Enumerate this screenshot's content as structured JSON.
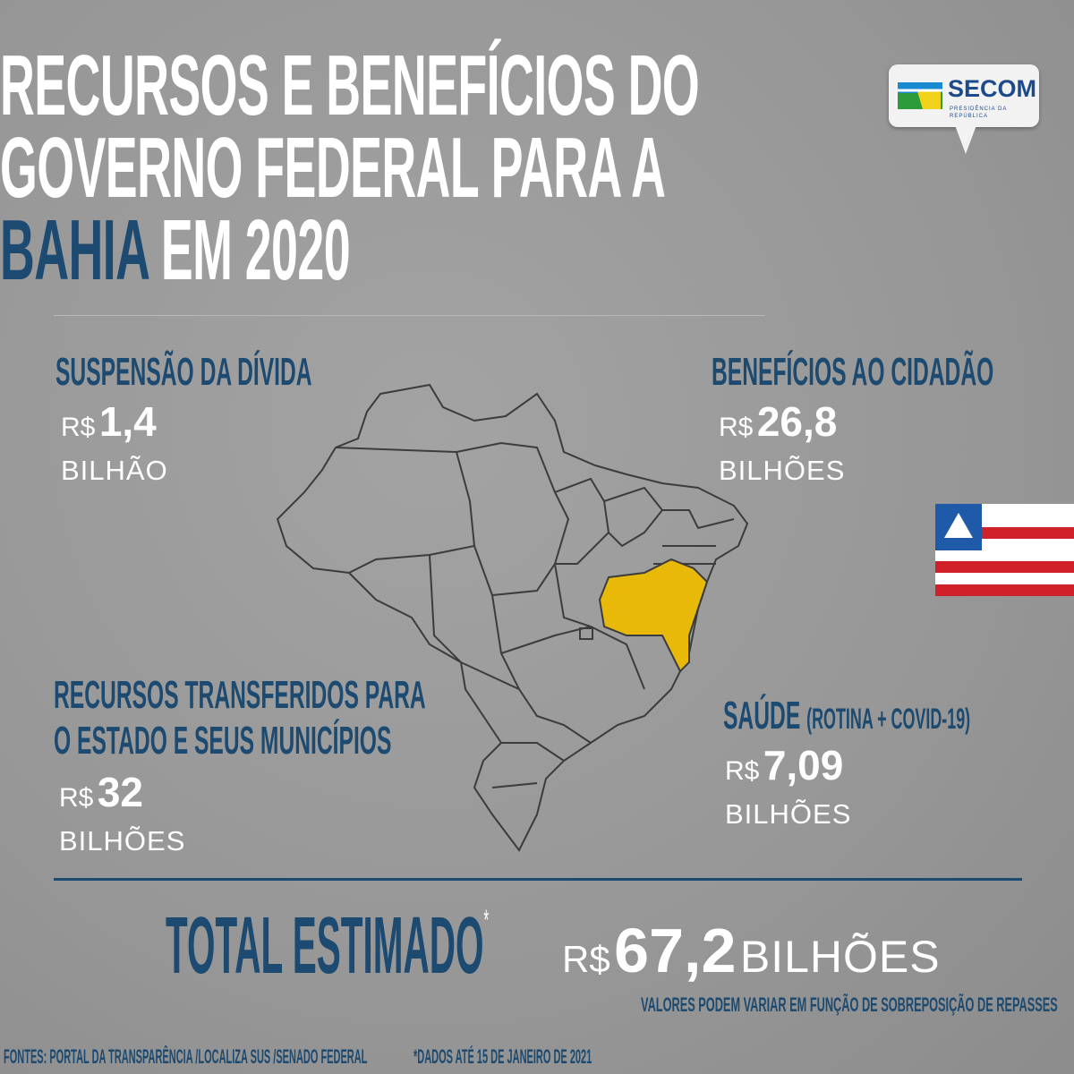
{
  "title": {
    "line1": "RECURSOS E BENEFÍCIOS DO",
    "line2": "GOVERNO FEDERAL PARA A",
    "state": "BAHIA",
    "line3_rest": " EM 2020"
  },
  "logo": {
    "name": "SECOM",
    "subtitle": "PRESIDÊNCIA DA REPÚBLICA"
  },
  "sections": {
    "divida": {
      "heading": "SUSPENSÃO DA DÍVIDA",
      "currency": "R$",
      "value": "1,4",
      "unit": "BILHÃO"
    },
    "beneficios": {
      "heading": "BENEFÍCIOS AO CIDADÃO",
      "currency": "R$",
      "value": "26,8",
      "unit": "BILHÕES"
    },
    "recursos": {
      "heading_line1": "RECURSOS TRANSFERIDOS PARA",
      "heading_line2": "O ESTADO E SEUS MUNICÍPIOS",
      "currency": "R$",
      "value": "32",
      "unit": "BILHÕES"
    },
    "saude": {
      "heading": "SAÚDE",
      "heading_note": "(ROTINA + COVID-19)",
      "currency": "R$",
      "value": "7,09",
      "unit": "BILHÕES"
    }
  },
  "total": {
    "label": "TOTAL ESTIMADO",
    "asterisk": "*",
    "currency": "R$",
    "value": "67,2",
    "unit": "BILHÕES",
    "note": "VALORES PODEM VARIAR EM FUNÇÃO DE SOBREPOSIÇÃO DE REPASSES"
  },
  "footer": {
    "sources": "FONTES: PORTAL DA TRANSPARÊNCIA /LOCALIZA SUS /SENADO FEDERAL",
    "date_note": "*DADOS ATÉ 15 DE JANEIRO DE 2021"
  },
  "colors": {
    "accent_blue": "#1d4a70",
    "bahia_yellow": "#e9b90a",
    "flag_red": "#d0202a",
    "flag_blue": "#1f5aa8"
  }
}
